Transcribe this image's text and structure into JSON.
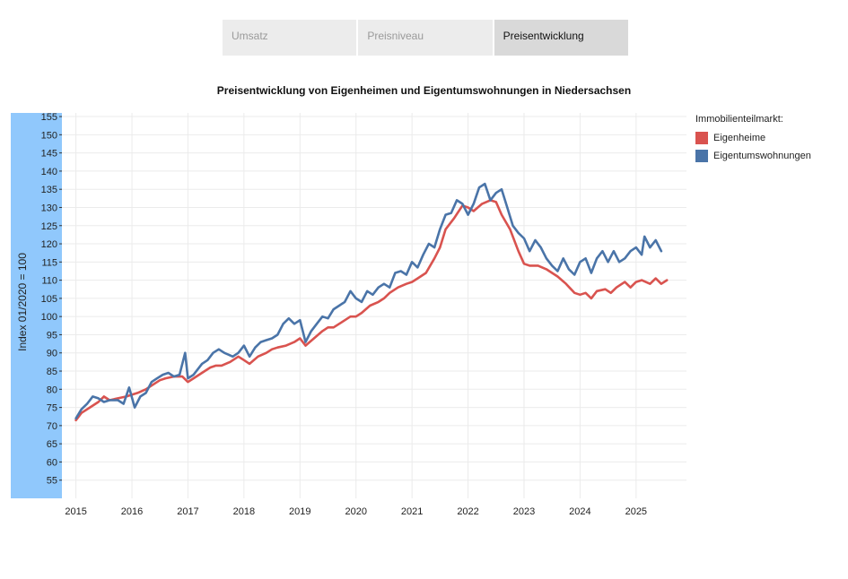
{
  "tabs": [
    {
      "label": "Umsatz",
      "active": false
    },
    {
      "label": "Preisniveau",
      "active": false
    },
    {
      "label": "Preisentwicklung",
      "active": true
    }
  ],
  "chart_data": {
    "type": "line",
    "title": "Preisentwicklung von Eigenheimen und Eigentumswohnungen in Niedersachsen",
    "xlabel": "",
    "ylabel": "Index 01/2020 = 100",
    "xlim": [
      2014.75,
      2025.9
    ],
    "ylim": [
      50,
      156
    ],
    "yticks": [
      55,
      60,
      65,
      70,
      75,
      80,
      85,
      90,
      95,
      100,
      105,
      110,
      115,
      120,
      125,
      130,
      135,
      140,
      145,
      150,
      155
    ],
    "xticks": [
      2015,
      2016,
      2017,
      2018,
      2019,
      2020,
      2021,
      2022,
      2023,
      2024,
      2025
    ],
    "legend_title": "Immobilienteilmarkt:",
    "legend_position": "top-right",
    "grid": true,
    "series": [
      {
        "name": "Eigenheime",
        "color": "#d9534f",
        "points": [
          [
            2015.0,
            71.5
          ],
          [
            2015.1,
            73.5
          ],
          [
            2015.25,
            75
          ],
          [
            2015.4,
            76.5
          ],
          [
            2015.5,
            78
          ],
          [
            2015.6,
            77
          ],
          [
            2015.75,
            77.5
          ],
          [
            2015.9,
            78
          ],
          [
            2016.0,
            78.5
          ],
          [
            2016.1,
            79
          ],
          [
            2016.25,
            80
          ],
          [
            2016.4,
            81.5
          ],
          [
            2016.5,
            82.5
          ],
          [
            2016.6,
            83
          ],
          [
            2016.75,
            83.5
          ],
          [
            2016.9,
            83.5
          ],
          [
            2017.0,
            82
          ],
          [
            2017.1,
            83
          ],
          [
            2017.25,
            84.5
          ],
          [
            2017.4,
            86
          ],
          [
            2017.5,
            86.5
          ],
          [
            2017.6,
            86.5
          ],
          [
            2017.75,
            87.5
          ],
          [
            2017.9,
            89
          ],
          [
            2018.0,
            88
          ],
          [
            2018.1,
            87
          ],
          [
            2018.25,
            89
          ],
          [
            2018.4,
            90
          ],
          [
            2018.5,
            91
          ],
          [
            2018.6,
            91.5
          ],
          [
            2018.75,
            92
          ],
          [
            2018.9,
            93
          ],
          [
            2019.0,
            94
          ],
          [
            2019.1,
            92
          ],
          [
            2019.25,
            94
          ],
          [
            2019.4,
            96
          ],
          [
            2019.5,
            97
          ],
          [
            2019.6,
            97
          ],
          [
            2019.75,
            98.5
          ],
          [
            2019.9,
            100
          ],
          [
            2020.0,
            100
          ],
          [
            2020.1,
            101
          ],
          [
            2020.25,
            103
          ],
          [
            2020.4,
            104
          ],
          [
            2020.5,
            105
          ],
          [
            2020.6,
            106.5
          ],
          [
            2020.75,
            108
          ],
          [
            2020.9,
            109
          ],
          [
            2021.0,
            109.5
          ],
          [
            2021.1,
            110.5
          ],
          [
            2021.25,
            112
          ],
          [
            2021.4,
            116
          ],
          [
            2021.5,
            119
          ],
          [
            2021.6,
            124
          ],
          [
            2021.75,
            127
          ],
          [
            2021.9,
            130.5
          ],
          [
            2022.0,
            130
          ],
          [
            2022.1,
            129
          ],
          [
            2022.25,
            131
          ],
          [
            2022.4,
            132
          ],
          [
            2022.5,
            131.5
          ],
          [
            2022.6,
            128
          ],
          [
            2022.75,
            124
          ],
          [
            2022.9,
            118
          ],
          [
            2023.0,
            114.5
          ],
          [
            2023.1,
            114
          ],
          [
            2023.25,
            114
          ],
          [
            2023.4,
            113
          ],
          [
            2023.5,
            112
          ],
          [
            2023.6,
            111
          ],
          [
            2023.75,
            109
          ],
          [
            2023.9,
            106.5
          ],
          [
            2024.0,
            106
          ],
          [
            2024.1,
            106.5
          ],
          [
            2024.2,
            105
          ],
          [
            2024.3,
            107
          ],
          [
            2024.45,
            107.5
          ],
          [
            2024.55,
            106.5
          ],
          [
            2024.65,
            108
          ],
          [
            2024.8,
            109.5
          ],
          [
            2024.9,
            108
          ],
          [
            2025.0,
            109.5
          ],
          [
            2025.1,
            110
          ],
          [
            2025.25,
            109
          ],
          [
            2025.35,
            110.5
          ],
          [
            2025.45,
            109
          ],
          [
            2025.55,
            110
          ]
        ]
      },
      {
        "name": "Eigentumswohnungen",
        "color": "#4a74a8",
        "points": [
          [
            2015.0,
            72
          ],
          [
            2015.1,
            74.5
          ],
          [
            2015.2,
            76
          ],
          [
            2015.3,
            78
          ],
          [
            2015.4,
            77.5
          ],
          [
            2015.5,
            76.5
          ],
          [
            2015.6,
            77
          ],
          [
            2015.75,
            77
          ],
          [
            2015.85,
            76
          ],
          [
            2015.95,
            80.5
          ],
          [
            2016.05,
            75
          ],
          [
            2016.15,
            78
          ],
          [
            2016.25,
            79
          ],
          [
            2016.35,
            82
          ],
          [
            2016.45,
            83
          ],
          [
            2016.55,
            84
          ],
          [
            2016.65,
            84.5
          ],
          [
            2016.75,
            83.5
          ],
          [
            2016.85,
            84
          ],
          [
            2016.95,
            90
          ],
          [
            2017.0,
            83
          ],
          [
            2017.1,
            84
          ],
          [
            2017.25,
            87
          ],
          [
            2017.35,
            88
          ],
          [
            2017.45,
            90
          ],
          [
            2017.55,
            91
          ],
          [
            2017.65,
            90
          ],
          [
            2017.8,
            89
          ],
          [
            2017.9,
            90
          ],
          [
            2018.0,
            92
          ],
          [
            2018.1,
            89
          ],
          [
            2018.2,
            91.5
          ],
          [
            2018.3,
            93
          ],
          [
            2018.4,
            93.5
          ],
          [
            2018.5,
            94
          ],
          [
            2018.6,
            95
          ],
          [
            2018.7,
            98
          ],
          [
            2018.8,
            99.5
          ],
          [
            2018.9,
            98
          ],
          [
            2019.0,
            99
          ],
          [
            2019.1,
            93
          ],
          [
            2019.2,
            96
          ],
          [
            2019.3,
            98
          ],
          [
            2019.4,
            100
          ],
          [
            2019.5,
            99.5
          ],
          [
            2019.6,
            102
          ],
          [
            2019.7,
            103
          ],
          [
            2019.8,
            104
          ],
          [
            2019.9,
            107
          ],
          [
            2020.0,
            105
          ],
          [
            2020.1,
            104
          ],
          [
            2020.2,
            107
          ],
          [
            2020.3,
            106
          ],
          [
            2020.4,
            108
          ],
          [
            2020.5,
            109
          ],
          [
            2020.6,
            108
          ],
          [
            2020.7,
            112
          ],
          [
            2020.8,
            112.5
          ],
          [
            2020.9,
            111.5
          ],
          [
            2021.0,
            115
          ],
          [
            2021.1,
            113.5
          ],
          [
            2021.2,
            117
          ],
          [
            2021.3,
            120
          ],
          [
            2021.4,
            119
          ],
          [
            2021.5,
            124
          ],
          [
            2021.6,
            128
          ],
          [
            2021.7,
            128.5
          ],
          [
            2021.8,
            132
          ],
          [
            2021.9,
            131
          ],
          [
            2022.0,
            128
          ],
          [
            2022.1,
            131
          ],
          [
            2022.2,
            135.5
          ],
          [
            2022.3,
            136.5
          ],
          [
            2022.4,
            132
          ],
          [
            2022.5,
            134
          ],
          [
            2022.6,
            135
          ],
          [
            2022.7,
            130
          ],
          [
            2022.8,
            125
          ],
          [
            2022.9,
            123
          ],
          [
            2023.0,
            121.5
          ],
          [
            2023.1,
            118
          ],
          [
            2023.2,
            121
          ],
          [
            2023.3,
            119
          ],
          [
            2023.4,
            116
          ],
          [
            2023.5,
            114
          ],
          [
            2023.6,
            112.5
          ],
          [
            2023.7,
            116
          ],
          [
            2023.8,
            113
          ],
          [
            2023.9,
            111.5
          ],
          [
            2024.0,
            115
          ],
          [
            2024.1,
            116
          ],
          [
            2024.2,
            112
          ],
          [
            2024.3,
            116
          ],
          [
            2024.4,
            118
          ],
          [
            2024.5,
            115
          ],
          [
            2024.6,
            118
          ],
          [
            2024.7,
            115
          ],
          [
            2024.8,
            116
          ],
          [
            2024.9,
            118
          ],
          [
            2025.0,
            119
          ],
          [
            2025.1,
            117
          ],
          [
            2025.15,
            122
          ],
          [
            2025.25,
            119
          ],
          [
            2025.35,
            121
          ],
          [
            2025.45,
            118
          ]
        ]
      }
    ]
  }
}
